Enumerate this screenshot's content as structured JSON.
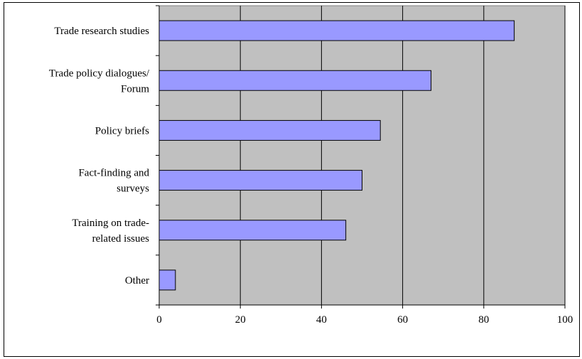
{
  "chart_data": {
    "type": "bar",
    "orientation": "horizontal",
    "title": "",
    "xlabel": "",
    "ylabel": "",
    "categories": [
      [
        "Trade research studies"
      ],
      [
        "Trade policy dialogues/",
        "Forum"
      ],
      [
        "Policy briefs"
      ],
      [
        "Fact-finding and",
        "surveys"
      ],
      [
        "Training on trade-",
        "related issues"
      ],
      [
        "Other"
      ]
    ],
    "values": [
      87.5,
      67,
      54.5,
      50,
      46,
      4
    ],
    "xlim": [
      0,
      100
    ],
    "xticks": [
      "0",
      "20",
      "40",
      "60",
      "80",
      "100"
    ],
    "grid": "vertical gridlines",
    "legend": "none",
    "colors": {
      "bar": "#9999ff",
      "bar_edge": "#000000",
      "plot_background": "#c0c0c0",
      "gridline": "#000000"
    }
  }
}
